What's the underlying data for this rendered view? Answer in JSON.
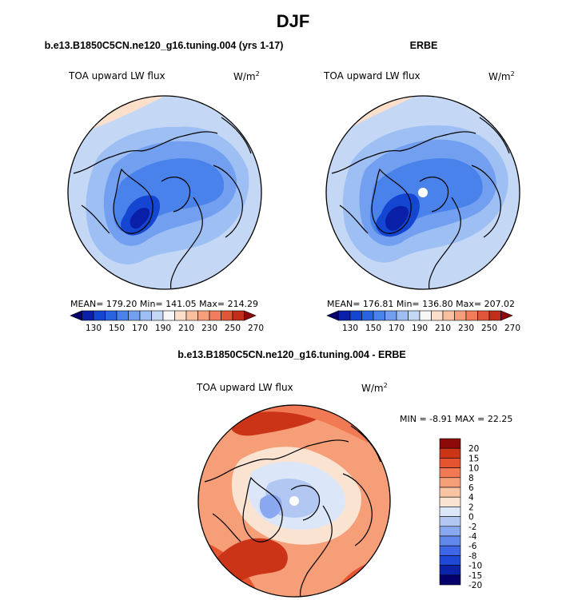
{
  "main_title": "DJF",
  "colors": {
    "abs_scale": [
      "#04006b",
      "#0a1fa7",
      "#1446d1",
      "#2a63e2",
      "#4a82ec",
      "#729fef",
      "#9dbff3",
      "#c4d8f5",
      "#f7f7f7",
      "#fbdfcb",
      "#f9c09f",
      "#f79f7c",
      "#f17c5b",
      "#e15539",
      "#c12e1c",
      "#8c0a08"
    ],
    "diff_scale": [
      "#05006b",
      "#0b23a8",
      "#1e48d6",
      "#3d67e6",
      "#6189ec",
      "#8aa8ef",
      "#b2c8f2",
      "#dbe7f8",
      "#fbe3d2",
      "#f9c4a3",
      "#f69e78",
      "#f17a55",
      "#e6532f",
      "#cc3417",
      "#8c0a08"
    ]
  },
  "panels": {
    "model": {
      "title": "b.e13.B1850C5CN.ne120_g16.tuning.004 (yrs 1-17)",
      "label_left": "TOA upward LW flux",
      "label_right": "W/m",
      "label_sup": "2",
      "stats_text": "MEAN= 179.20  Min= 141.05  Max= 214.29",
      "colorbar_labels": [
        "130",
        "150",
        "170",
        "190",
        "210",
        "230",
        "250",
        "270"
      ]
    },
    "obs": {
      "title": "ERBE",
      "label_left": "TOA upward LW flux",
      "label_right": "W/m",
      "label_sup": "2",
      "stats_text": "MEAN= 176.81  Min= 136.80  Max= 207.02",
      "colorbar_labels": [
        "130",
        "150",
        "170",
        "190",
        "210",
        "230",
        "250",
        "270"
      ]
    },
    "diff": {
      "title": "b.e13.B1850C5CN.ne120_g16.tuning.004 - ERBE",
      "label_left": "TOA upward LW flux",
      "label_right": "W/m",
      "label_sup": "2",
      "stats_text": "MIN =   -8.91  MAX =   22.25",
      "colorbar_labels": [
        "20",
        "15",
        "10",
        "8",
        "6",
        "4",
        "2",
        "0",
        "-2",
        "-4",
        "-6",
        "-8",
        "-10",
        "-15",
        "-20"
      ]
    }
  },
  "chart_data": [
    {
      "type": "heatmap",
      "projection": "north polar stereographic",
      "title": "b.e13.B1850C5CN.ne120_g16.tuning.004 (yrs 1-17)",
      "variable": "TOA upward LW flux",
      "units": "W/m2",
      "mean": 179.2,
      "min": 141.05,
      "max": 214.29,
      "contour_levels": [
        130,
        140,
        150,
        160,
        170,
        180,
        190,
        200,
        210,
        220,
        230,
        240,
        250,
        260,
        270
      ]
    },
    {
      "type": "heatmap",
      "projection": "north polar stereographic",
      "title": "ERBE",
      "variable": "TOA upward LW flux",
      "units": "W/m2",
      "mean": 176.81,
      "min": 136.8,
      "max": 207.02,
      "contour_levels": [
        130,
        140,
        150,
        160,
        170,
        180,
        190,
        200,
        210,
        220,
        230,
        240,
        250,
        260,
        270
      ]
    },
    {
      "type": "heatmap",
      "projection": "north polar stereographic",
      "title": "b.e13.B1850C5CN.ne120_g16.tuning.004 - ERBE",
      "variable": "TOA upward LW flux",
      "units": "W/m2",
      "min": -8.91,
      "max": 22.25,
      "contour_levels": [
        -20,
        -15,
        -10,
        -8,
        -6,
        -4,
        -2,
        0,
        2,
        4,
        6,
        8,
        10,
        15,
        20
      ]
    }
  ]
}
